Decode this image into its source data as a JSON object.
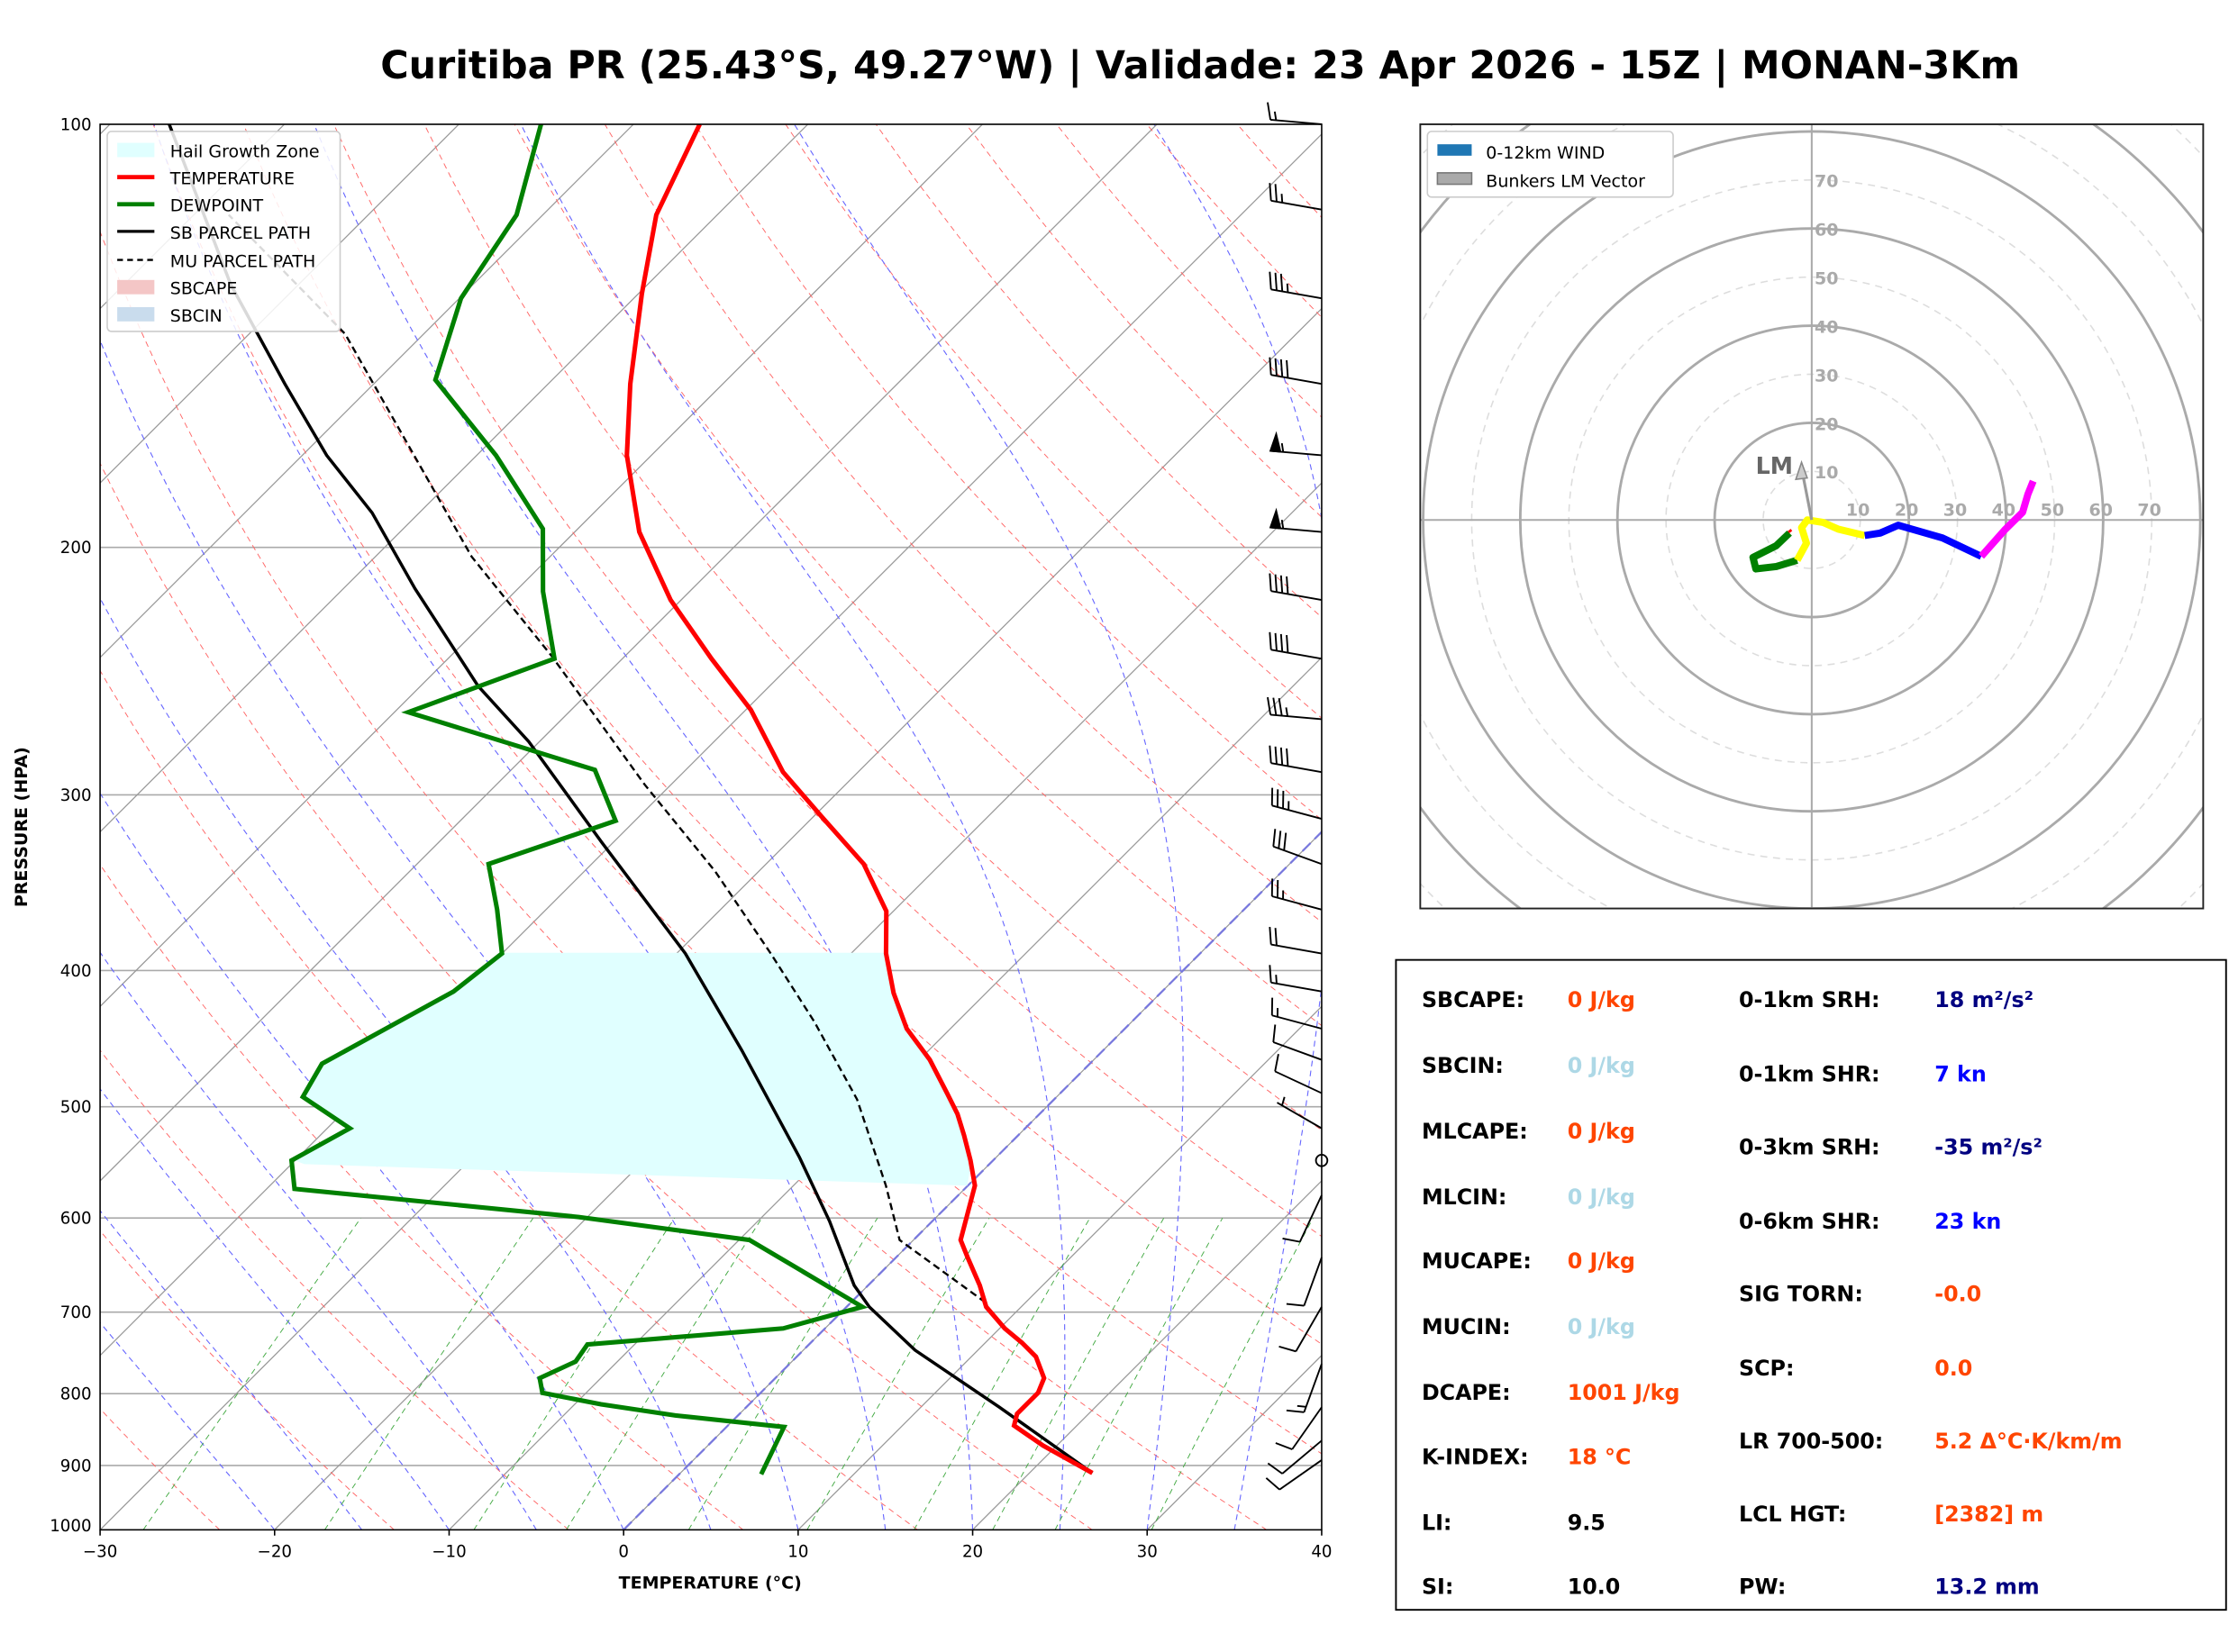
{
  "title": "Curitiba PR (25.43°S, 49.27°W) | Validade: 23 Apr 2026 - 15Z | MONAN-3Km",
  "chart_data": [
    {
      "type": "line",
      "name": "skew-t",
      "xlabel": "TEMPERATURE (°C)",
      "ylabel": "PRESSURE (HPA)",
      "xlim": [
        -30,
        40
      ],
      "ylim": [
        1000,
        100
      ],
      "xticks": [
        "−30",
        "−20",
        "−10",
        "0",
        "10",
        "20",
        "30",
        "40"
      ],
      "yticks": [
        "100",
        "200",
        "300",
        "400",
        "500",
        "600",
        "700",
        "800",
        "900",
        "1000"
      ],
      "legend": {
        "position": "top-left",
        "entries": [
          "Hail Growth Zone",
          "TEMPERATURE",
          "DEWPOINT",
          "SB PARCEL PATH",
          "MU PARCEL PATH",
          "SBCAPE",
          "SBCIN"
        ]
      },
      "colors": {
        "temperature": "#ff0000",
        "dewpoint": "#008000",
        "parcel": "#000000",
        "hgz": "#e0ffff",
        "sbcape": "#f4c6c6",
        "sbcin": "#c9dced"
      },
      "hail_growth_zone_hpa": [
        389,
        565
      ],
      "temperature": [
        [
          911,
          23.6
        ],
        [
          871,
          19.2
        ],
        [
          843,
          16.4
        ],
        [
          827,
          15.9
        ],
        [
          799,
          15.9
        ],
        [
          780,
          15.4
        ],
        [
          753,
          13.7
        ],
        [
          736,
          12.1
        ],
        [
          719,
          10.3
        ],
        [
          694,
          8.0
        ],
        [
          670,
          6.4
        ],
        [
          640,
          4.1
        ],
        [
          622,
          2.7
        ],
        [
          596,
          1.6
        ],
        [
          569,
          0.4
        ],
        [
          546,
          -1.3
        ],
        [
          524,
          -3.1
        ],
        [
          506,
          -4.7
        ],
        [
          489,
          -6.5
        ],
        [
          463,
          -9.4
        ],
        [
          440,
          -12.5
        ],
        [
          415,
          -15.3
        ],
        [
          389,
          -18.0
        ],
        [
          363,
          -20.4
        ],
        [
          336,
          -24.4
        ],
        [
          311,
          -29.5
        ],
        [
          289,
          -34.3
        ],
        [
          261,
          -39.7
        ],
        [
          240,
          -44.9
        ],
        [
          218,
          -50.6
        ],
        [
          195,
          -56.3
        ],
        [
          172,
          -61.4
        ],
        [
          153,
          -65.3
        ],
        [
          132,
          -69.8
        ],
        [
          116,
          -73.5
        ],
        [
          100,
          -76.2
        ]
      ],
      "dewpoint": [
        [
          913,
          4.7
        ],
        [
          845,
          3.3
        ],
        [
          829,
          -3.6
        ],
        [
          814,
          -8.5
        ],
        [
          799,
          -12.5
        ],
        [
          780,
          -13.5
        ],
        [
          759,
          -12.4
        ],
        [
          738,
          -12.7
        ],
        [
          719,
          -2.4
        ],
        [
          694,
          0.9
        ],
        [
          649,
          -5.4
        ],
        [
          622,
          -9.4
        ],
        [
          599,
          -20.5
        ],
        [
          572,
          -38.4
        ],
        [
          546,
          -40.2
        ],
        [
          518,
          -38.7
        ],
        [
          492,
          -43.2
        ],
        [
          466,
          -44.0
        ],
        [
          414,
          -40.6
        ],
        [
          389,
          -40.0
        ],
        [
          362,
          -42.8
        ],
        [
          336,
          -45.9
        ],
        [
          313,
          -41.1
        ],
        [
          288,
          -45.2
        ],
        [
          262,
          -59.2
        ],
        [
          240,
          -53.9
        ],
        [
          215,
          -58.4
        ],
        [
          194,
          -62.0
        ],
        [
          172,
          -68.9
        ],
        [
          152,
          -76.7
        ],
        [
          133,
          -79.9
        ],
        [
          116,
          -81.5
        ],
        [
          100,
          -85.3
        ]
      ],
      "sb_parcel": [
        [
          911,
          23.6
        ],
        [
          818,
          14.5
        ],
        [
          745,
          6.4
        ],
        [
          694,
          1.3
        ],
        [
          670,
          -0.8
        ],
        [
          603,
          -5.9
        ],
        [
          543,
          -11.3
        ],
        [
          456,
          -20.7
        ],
        [
          389,
          -29.5
        ],
        [
          324,
          -40.7
        ],
        [
          275,
          -50.6
        ],
        [
          251,
          -56.7
        ],
        [
          214,
          -65.9
        ],
        [
          189,
          -72.7
        ],
        [
          172,
          -78.6
        ],
        [
          153,
          -85.1
        ],
        [
          130,
          -93.9
        ],
        [
          100,
          -106.6
        ]
      ],
      "mu_parcel": [
        [
          689,
          7.7
        ],
        [
          622,
          -0.8
        ],
        [
          569,
          -4.7
        ],
        [
          494,
          -11.3
        ],
        [
          435,
          -18.2
        ],
        [
          389,
          -24.6
        ],
        [
          340,
          -32.5
        ],
        [
          295,
          -41.5
        ],
        [
          239,
          -54.2
        ],
        [
          203,
          -64.5
        ],
        [
          141,
          -84.5
        ],
        [
          116,
          -98.0
        ]
      ],
      "wind_barbs": [
        [
          100,
          275,
          15
        ],
        [
          115,
          280,
          25
        ],
        [
          133,
          280,
          35
        ],
        [
          153,
          280,
          40
        ],
        [
          172,
          275,
          55
        ],
        [
          195,
          275,
          55
        ],
        [
          218,
          280,
          40
        ],
        [
          240,
          280,
          40
        ],
        [
          265,
          275,
          35
        ],
        [
          289,
          280,
          40
        ],
        [
          312,
          285,
          35
        ],
        [
          336,
          290,
          30
        ],
        [
          362,
          285,
          25
        ],
        [
          389,
          280,
          20
        ],
        [
          414,
          280,
          15
        ],
        [
          440,
          285,
          15
        ],
        [
          463,
          290,
          10
        ],
        [
          489,
          295,
          10
        ],
        [
          518,
          300,
          5
        ],
        [
          546,
          0,
          0
        ],
        [
          578,
          205,
          10
        ],
        [
          640,
          200,
          10
        ],
        [
          694,
          210,
          10
        ],
        [
          762,
          200,
          15
        ],
        [
          818,
          215,
          10
        ],
        [
          864,
          230,
          10
        ],
        [
          892,
          235,
          10
        ]
      ]
    },
    {
      "type": "line",
      "name": "hodograph",
      "legend": {
        "position": "top-left",
        "entries": [
          "0-12km WIND",
          "Bunkers LM Vector"
        ]
      },
      "ring_labels": [
        "10",
        "20",
        "30",
        "40",
        "50",
        "60",
        "70"
      ],
      "lm_label": "LM",
      "lm_vector": [
        -2.1,
        10.7
      ],
      "segments": [
        {
          "color": "#ff0000",
          "points": [
            [
              -4.9,
              -2.3
            ],
            [
              -4.6,
              -2.7
            ]
          ]
        },
        {
          "color": "#008000",
          "points": [
            [
              -4.6,
              -2.7
            ],
            [
              -7.3,
              -5.3
            ],
            [
              -12.1,
              -7.7
            ],
            [
              -11.5,
              -10.1
            ],
            [
              -7.3,
              -9.6
            ],
            [
              -3.0,
              -8.3
            ]
          ]
        },
        {
          "color": "#ffff00",
          "points": [
            [
              -3.0,
              -8.3
            ],
            [
              -1.1,
              -4.8
            ],
            [
              -2.1,
              -1.6
            ],
            [
              -0.9,
              0
            ],
            [
              2.3,
              -0.5
            ],
            [
              5.5,
              -1.9
            ],
            [
              10.9,
              -3.2
            ]
          ]
        },
        {
          "color": "#0000ff",
          "points": [
            [
              10.9,
              -3.2
            ],
            [
              14.1,
              -2.7
            ],
            [
              17.8,
              -1.1
            ],
            [
              26.9,
              -3.7
            ],
            [
              34.9,
              -7.5
            ]
          ]
        },
        {
          "color": "#ff00ff",
          "points": [
            [
              34.9,
              -7.5
            ],
            [
              39.7,
              -2.1
            ],
            [
              43.4,
              1.6
            ],
            [
              44.5,
              5.3
            ],
            [
              45.6,
              8.0
            ]
          ]
        }
      ]
    }
  ],
  "stats": {
    "left": [
      {
        "label": "SBCAPE:",
        "value": "0 J/kg",
        "color": "#ff4500"
      },
      {
        "label": "SBCIN:",
        "value": "0 J/kg",
        "color": "#add8e6"
      },
      {
        "label": "MLCAPE:",
        "value": "0 J/kg",
        "color": "#ff4500"
      },
      {
        "label": "MLCIN:",
        "value": "0 J/kg",
        "color": "#add8e6"
      },
      {
        "label": "MUCAPE:",
        "value": "0 J/kg",
        "color": "#ff4500"
      },
      {
        "label": "MUCIN:",
        "value": "0 J/kg",
        "color": "#add8e6"
      },
      {
        "label": "DCAPE:",
        "value": "1001 J/kg",
        "color": "#ff4500"
      },
      {
        "label": "K-INDEX:",
        "value": "18 °C",
        "color": "#ff4500"
      },
      {
        "label": "LI:",
        "value": "9.5",
        "color": "#000000"
      },
      {
        "label": "SI:",
        "value": "10.0",
        "color": "#000000"
      }
    ],
    "right": [
      {
        "label": "0-1km SRH:",
        "value": "18 m²/s²",
        "color": "#000080"
      },
      {
        "label": "0-1km SHR:",
        "value": "7 kn",
        "color": "#0000ff"
      },
      {
        "label": "0-3km SRH:",
        "value": "-35 m²/s²",
        "color": "#000080"
      },
      {
        "label": "0-6km SHR:",
        "value": "23 kn",
        "color": "#0000ff"
      },
      {
        "label": "SIG TORN:",
        "value": "-0.0",
        "color": "#ff4500"
      },
      {
        "label": "SCP:",
        "value": "0.0",
        "color": "#ff4500"
      },
      {
        "label": "LR 700-500:",
        "value": "5.2 Δ°C·K/km/m",
        "color": "#ff4500"
      },
      {
        "label": "LCL HGT:",
        "value": "[2382] m",
        "color": "#ff4500"
      },
      {
        "label": "PW:",
        "value": "13.2 mm",
        "color": "#000080"
      }
    ]
  }
}
